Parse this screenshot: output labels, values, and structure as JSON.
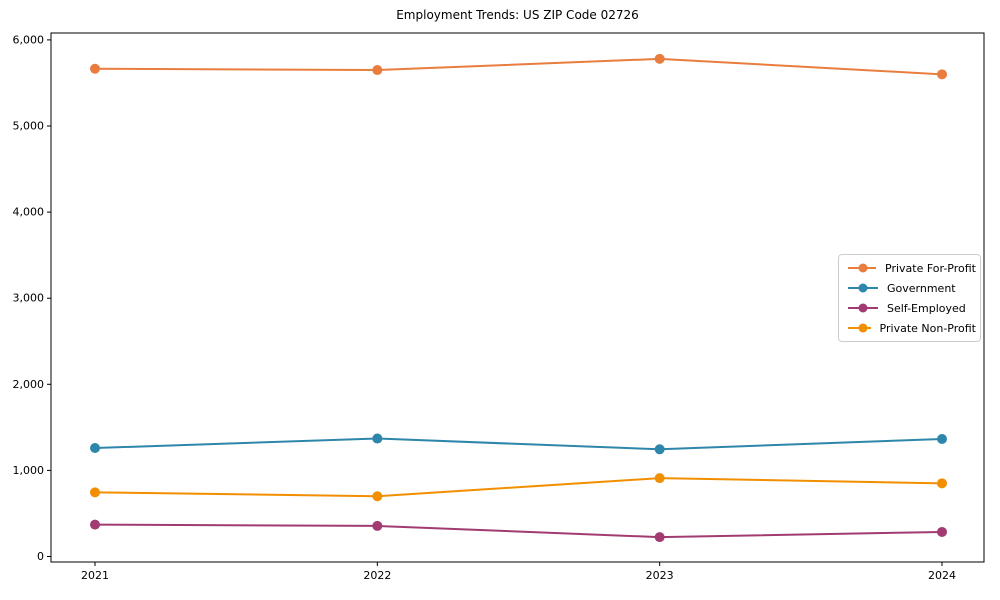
{
  "chart_data": {
    "type": "line",
    "title": "Employment Trends: US ZIP Code 02726",
    "x": [
      "2021",
      "2022",
      "2023",
      "2024"
    ],
    "series": [
      {
        "name": "Private For-Profit",
        "color": "#E87D3E",
        "values": [
          5665,
          5650,
          5780,
          5600
        ]
      },
      {
        "name": "Government",
        "color": "#2E86AB",
        "values": [
          1260,
          1370,
          1245,
          1365
        ]
      },
      {
        "name": "Self-Employed",
        "color": "#A23B72",
        "values": [
          370,
          355,
          225,
          285
        ]
      },
      {
        "name": "Private Non-Profit",
        "color": "#F18F01",
        "values": [
          745,
          700,
          910,
          850
        ]
      }
    ],
    "y_axis": {
      "ticks": [
        {
          "value": 0,
          "label": "0"
        },
        {
          "value": 1000,
          "label": "1,000"
        },
        {
          "value": 2000,
          "label": "2,000"
        },
        {
          "value": 3000,
          "label": "3,000"
        },
        {
          "value": 4000,
          "label": "4,000"
        },
        {
          "value": 5000,
          "label": "5,000"
        },
        {
          "value": 6000,
          "label": "6,000"
        }
      ],
      "ylim": [
        0,
        6000
      ]
    },
    "xlabel": "",
    "ylabel": "",
    "grid": false,
    "marker": "circle",
    "legend_position": "center-right"
  }
}
